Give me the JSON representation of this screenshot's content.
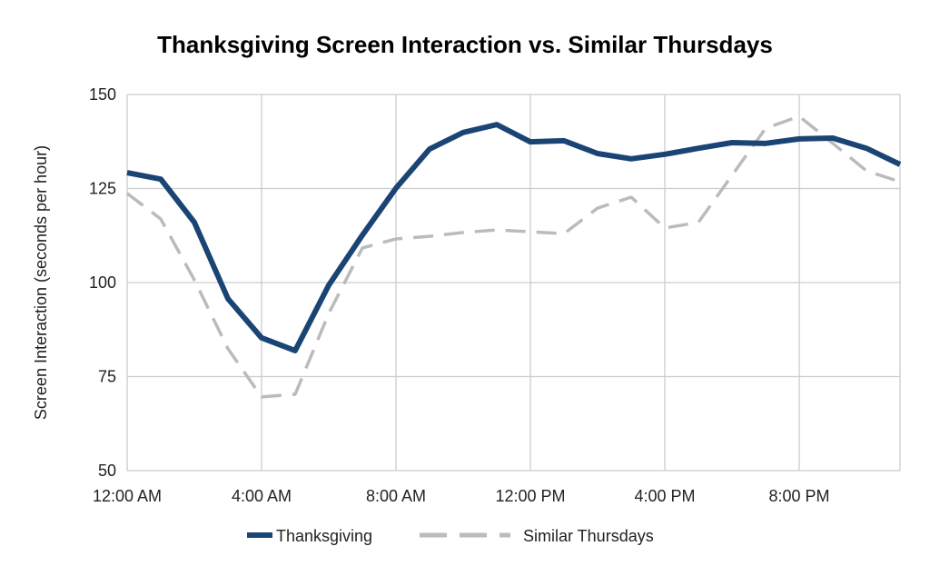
{
  "chart_data": {
    "type": "line",
    "title": "Thanksgiving Screen Interaction vs. Similar Thursdays",
    "xlabel": "",
    "ylabel": "Screen Interaction (seconds per hour)",
    "ylim": [
      50,
      150
    ],
    "yticks": [
      "50",
      "75",
      "100",
      "125",
      "150"
    ],
    "ytick_values": [
      50,
      75,
      100,
      125,
      150
    ],
    "x_hours": [
      0,
      1,
      2,
      3,
      4,
      5,
      6,
      7,
      8,
      9,
      10,
      11,
      12,
      13,
      14,
      15,
      16,
      17,
      18,
      19,
      20,
      21,
      22,
      23
    ],
    "xticks": [
      "12:00 AM",
      "4:00 AM",
      "8:00 AM",
      "12:00 PM",
      "4:00 PM",
      "8:00 PM"
    ],
    "xtick_hours": [
      0,
      4,
      8,
      12,
      16,
      20
    ],
    "grid": true,
    "legend_position": "bottom",
    "series": [
      {
        "name": "Thanksgiving",
        "color": "#1a4473",
        "style": "solid",
        "values": [
          129.2,
          127.5,
          116,
          95.7,
          85.3,
          81.9,
          99.3,
          112.6,
          125.1,
          135.5,
          139.9,
          142,
          137.4,
          137.7,
          134.3,
          132.9,
          134.1,
          135.7,
          137.2,
          137,
          138.2,
          138.4,
          135.7,
          131.4
        ]
      },
      {
        "name": "Similar Thursdays",
        "color": "#bbbbbb",
        "style": "dashed",
        "values": [
          123.7,
          116.9,
          100.7,
          82.4,
          69.6,
          70.3,
          91.8,
          109.2,
          111.6,
          112.3,
          113.3,
          114,
          113.5,
          113,
          119.8,
          122.7,
          114.5,
          116,
          128.5,
          141,
          144.2,
          137,
          129.7,
          126.8
        ]
      }
    ]
  }
}
